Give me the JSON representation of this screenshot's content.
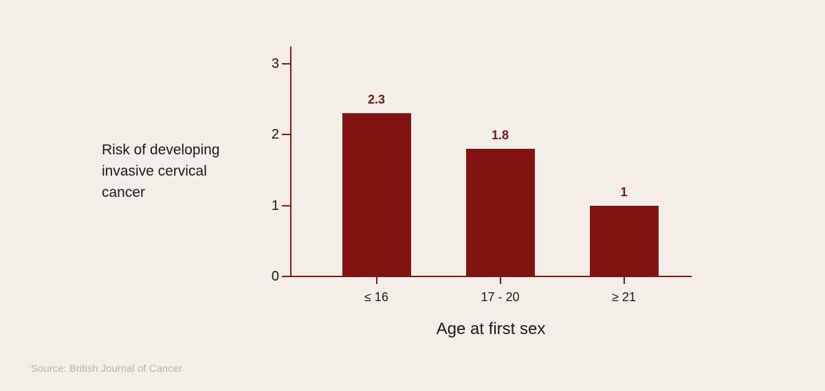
{
  "colors": {
    "background": "#F4EEE9",
    "bar": "#811311",
    "axis": "#8A1713",
    "value_label": "#7E1412",
    "text": "#1A1A1A",
    "source_text": "#BDB2AC"
  },
  "chart_data": {
    "type": "bar",
    "title": "",
    "categories": [
      "≤ 16",
      "17 - 20",
      "≥ 21"
    ],
    "values": [
      2.3,
      1.8,
      1
    ],
    "value_labels": [
      "2.3",
      "1.8",
      "1"
    ],
    "xlabel": "Age at first sex",
    "ylabel": "Risk of developing invasive cervical cancer",
    "ylabel_multiline": "Risk of developing\ninvasive cervical\ncancer",
    "ylim": [
      0,
      3.25
    ],
    "yticks": [
      0,
      1,
      2,
      3
    ],
    "grid": false,
    "legend": false,
    "bar_color": "#811311"
  },
  "source": {
    "text": "Source: British Journal of Cancer"
  }
}
